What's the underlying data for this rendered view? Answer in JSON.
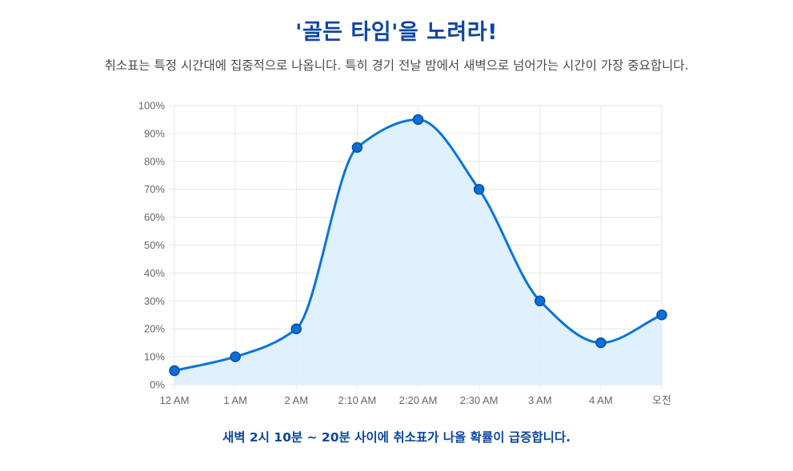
{
  "header": {
    "title": "'골든 타임'을 노려라!",
    "subtitle": "취소표는 특정 시간대에 집중적으로 나옵니다. 특히 경기 전날 밤에서 새벽으로 넘어가는 시간이 가장 중요합니다."
  },
  "footer": {
    "note": "새벽 2시 10분 ~ 20분 사이에 취소표가 나올 확률이 급증합니다."
  },
  "colors": {
    "title": "#0d47a1",
    "line": "#0a74da",
    "fill": "#dbeeff",
    "point": "#0a6fd6",
    "point_border": "#0b4fa8",
    "grid": "#e6e6e6"
  },
  "chart_data": {
    "type": "line",
    "categories": [
      "12 AM",
      "1 AM",
      "2 AM",
      "2:10 AM",
      "2:20 AM",
      "2:30 AM",
      "3 AM",
      "4 AM",
      "오전"
    ],
    "series": [
      {
        "values": [
          5,
          10,
          20,
          85,
          95,
          70,
          30,
          15,
          25
        ]
      }
    ],
    "ylim": [
      0,
      100
    ],
    "yticks": [
      "0%",
      "10%",
      "20%",
      "30%",
      "40%",
      "50%",
      "60%",
      "70%",
      "80%",
      "90%",
      "100%"
    ],
    "grid": true,
    "fill": true,
    "smooth": true
  }
}
